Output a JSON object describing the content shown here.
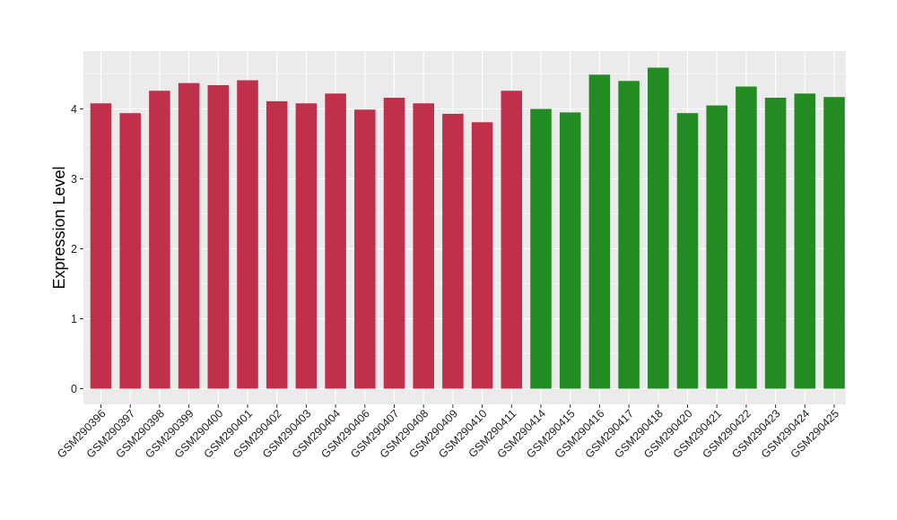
{
  "chart_data": {
    "type": "bar",
    "title": "",
    "xlabel": "",
    "ylabel": "Expression Level",
    "ylim": [
      0,
      4.8
    ],
    "yticks": [
      0,
      1,
      2,
      3,
      4
    ],
    "grid": true,
    "legend": "none",
    "categories": [
      "GSM290396",
      "GSM290397",
      "GSM290398",
      "GSM290399",
      "GSM290400",
      "GSM290401",
      "GSM290402",
      "GSM290403",
      "GSM290404",
      "GSM290406",
      "GSM290407",
      "GSM290408",
      "GSM290409",
      "GSM290410",
      "GSM290411",
      "GSM290414",
      "GSM290415",
      "GSM290416",
      "GSM290417",
      "GSM290418",
      "GSM290420",
      "GSM290421",
      "GSM290422",
      "GSM290423",
      "GSM290424",
      "GSM290425"
    ],
    "values": [
      4.08,
      3.94,
      4.26,
      4.37,
      4.34,
      4.41,
      4.11,
      4.08,
      4.22,
      3.99,
      4.16,
      4.08,
      3.93,
      3.81,
      4.26,
      4.0,
      3.95,
      4.49,
      4.4,
      4.59,
      3.94,
      4.05,
      4.32,
      4.16,
      4.22,
      4.17
    ],
    "bar_colors": [
      "#c0304a",
      "#c0304a",
      "#c0304a",
      "#c0304a",
      "#c0304a",
      "#c0304a",
      "#c0304a",
      "#c0304a",
      "#c0304a",
      "#c0304a",
      "#c0304a",
      "#c0304a",
      "#c0304a",
      "#c0304a",
      "#c0304a",
      "#228b22",
      "#228b22",
      "#228b22",
      "#228b22",
      "#228b22",
      "#228b22",
      "#228b22",
      "#228b22",
      "#228b22",
      "#228b22",
      "#228b22"
    ],
    "panel_background": "#ebebeb",
    "grid_color": "#ffffff"
  }
}
